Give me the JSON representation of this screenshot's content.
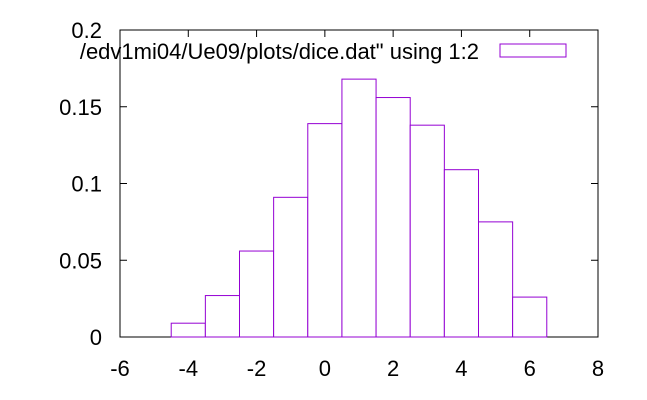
{
  "chart_data": {
    "type": "bar",
    "title": "",
    "xlabel": "",
    "ylabel": "",
    "xlim": [
      -6,
      8
    ],
    "ylim": [
      0,
      0.2
    ],
    "x": [
      -4,
      -3,
      -2,
      -1,
      0,
      1,
      2,
      3,
      4,
      5,
      6
    ],
    "series": [
      {
        "name": "'/edv1mi04/Ue09/plots/dice.dat' using 1:2",
        "values": [
          0.009,
          0.027,
          0.056,
          0.091,
          0.139,
          0.168,
          0.156,
          0.138,
          0.109,
          0.075,
          0.026
        ]
      }
    ],
    "x_ticks": [
      -6,
      -4,
      -2,
      0,
      2,
      4,
      6,
      8
    ],
    "y_ticks": [
      0,
      0.05,
      0.1,
      0.15,
      0.2
    ],
    "x_tick_labels": [
      "-6",
      "-4",
      "-2",
      "0",
      "2",
      "4",
      "6",
      "8"
    ],
    "y_tick_labels": [
      "0",
      "0.05",
      "0.1",
      "0.15",
      "0.2"
    ],
    "legend": {
      "label": "/edv1mi04/Ue09/plots/dice.dat\" using 1:2",
      "placement": "top-right"
    },
    "grid": false,
    "bar_color": "#9400d3",
    "bar_fill": "#ffffff",
    "axis_color": "#000000"
  }
}
